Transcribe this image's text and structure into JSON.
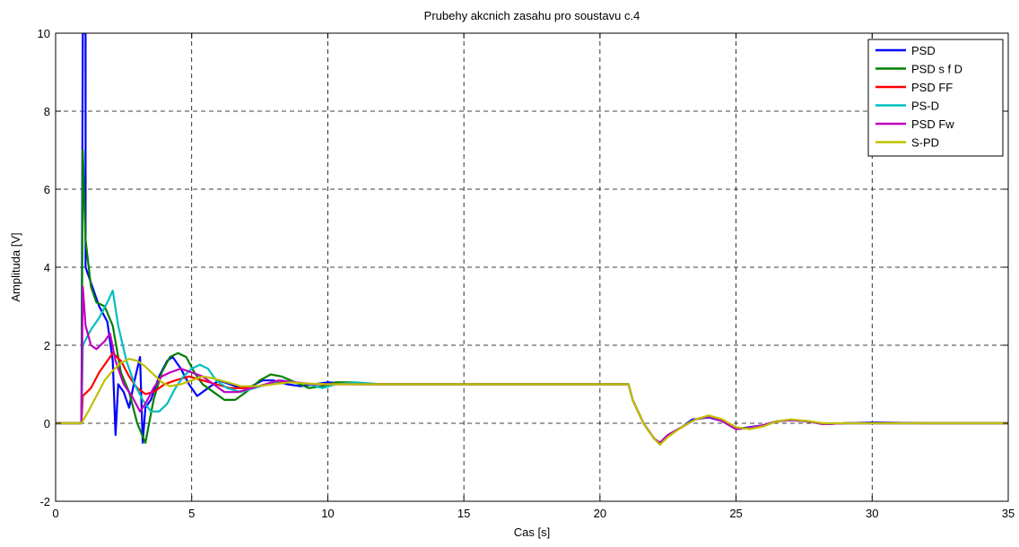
{
  "chart_data": {
    "type": "line",
    "title": "Prubehy akcnich zasahu pro soustavu c.4",
    "xlabel": "Cas [s]",
    "ylabel": "Amplituda [V]",
    "xlim": [
      0,
      35
    ],
    "ylim": [
      -2,
      10
    ],
    "xticks": [
      0,
      5,
      10,
      15,
      20,
      25,
      30,
      35
    ],
    "yticks": [
      -2,
      0,
      2,
      4,
      6,
      8,
      10
    ],
    "grid": true,
    "legend_position": "top-right",
    "series": [
      {
        "name": "PSD",
        "color": "#0000ff",
        "points": [
          [
            0,
            0
          ],
          [
            0.95,
            0
          ],
          [
            1.0,
            10
          ],
          [
            1.1,
            10
          ],
          [
            1.1,
            4.0
          ],
          [
            1.3,
            3.6
          ],
          [
            1.6,
            3.0
          ],
          [
            1.9,
            2.6
          ],
          [
            2.1,
            1.6
          ],
          [
            2.2,
            -0.3
          ],
          [
            2.3,
            1.0
          ],
          [
            2.5,
            0.8
          ],
          [
            2.7,
            0.4
          ],
          [
            2.9,
            1.1
          ],
          [
            3.1,
            1.7
          ],
          [
            3.2,
            -0.5
          ],
          [
            3.3,
            0.4
          ],
          [
            3.5,
            0.6
          ],
          [
            3.8,
            1.2
          ],
          [
            4.1,
            1.6
          ],
          [
            4.3,
            1.7
          ],
          [
            4.6,
            1.4
          ],
          [
            4.9,
            1.0
          ],
          [
            5.2,
            0.7
          ],
          [
            5.6,
            0.9
          ],
          [
            6.0,
            1.1
          ],
          [
            6.4,
            1.0
          ],
          [
            6.8,
            0.9
          ],
          [
            7.2,
            0.95
          ],
          [
            7.6,
            1.1
          ],
          [
            8.0,
            1.1
          ],
          [
            8.5,
            1.0
          ],
          [
            9.0,
            0.95
          ],
          [
            9.5,
            1.0
          ],
          [
            10.0,
            1.05
          ],
          [
            11,
            1.0
          ],
          [
            12,
            1.0
          ],
          [
            13,
            1.0
          ],
          [
            15,
            1.0
          ],
          [
            21.05,
            1.0
          ],
          [
            21.2,
            0.6
          ],
          [
            21.6,
            0.0
          ],
          [
            22.0,
            -0.4
          ],
          [
            22.2,
            -0.5
          ],
          [
            22.5,
            -0.3
          ],
          [
            23.0,
            -0.1
          ],
          [
            23.4,
            0.1
          ],
          [
            24.0,
            0.15
          ],
          [
            24.5,
            0.05
          ],
          [
            25.0,
            -0.15
          ],
          [
            25.5,
            -0.1
          ],
          [
            26.0,
            -0.05
          ],
          [
            26.5,
            0.05
          ],
          [
            27.0,
            0.08
          ],
          [
            27.6,
            0.05
          ],
          [
            28.2,
            -0.02
          ],
          [
            29.0,
            0.0
          ],
          [
            30,
            0.02
          ],
          [
            32,
            0.0
          ],
          [
            35,
            0.0
          ]
        ]
      },
      {
        "name": "PSD s f D",
        "color": "#008000",
        "points": [
          [
            0,
            0
          ],
          [
            0.95,
            0
          ],
          [
            1.0,
            7.0
          ],
          [
            1.1,
            4.7
          ],
          [
            1.3,
            3.5
          ],
          [
            1.5,
            3.1
          ],
          [
            1.8,
            3.0
          ],
          [
            2.1,
            2.5
          ],
          [
            2.4,
            1.3
          ],
          [
            2.7,
            0.8
          ],
          [
            3.0,
            0.0
          ],
          [
            3.3,
            -0.5
          ],
          [
            3.6,
            0.6
          ],
          [
            3.9,
            1.3
          ],
          [
            4.2,
            1.7
          ],
          [
            4.5,
            1.8
          ],
          [
            4.8,
            1.7
          ],
          [
            5.1,
            1.3
          ],
          [
            5.4,
            1.0
          ],
          [
            5.8,
            0.8
          ],
          [
            6.2,
            0.6
          ],
          [
            6.6,
            0.6
          ],
          [
            7.0,
            0.8
          ],
          [
            7.5,
            1.1
          ],
          [
            7.9,
            1.25
          ],
          [
            8.3,
            1.2
          ],
          [
            8.8,
            1.05
          ],
          [
            9.3,
            0.9
          ],
          [
            9.8,
            0.95
          ],
          [
            10.3,
            1.05
          ],
          [
            10.9,
            1.05
          ],
          [
            11.5,
            1.0
          ],
          [
            13,
            1.0
          ],
          [
            15,
            1.0
          ],
          [
            21.05,
            1.0
          ],
          [
            21.2,
            0.6
          ],
          [
            21.6,
            0.0
          ],
          [
            22.0,
            -0.4
          ],
          [
            22.2,
            -0.5
          ],
          [
            22.5,
            -0.3
          ],
          [
            23.0,
            -0.1
          ],
          [
            23.5,
            0.1
          ],
          [
            24.0,
            0.17
          ],
          [
            24.5,
            0.05
          ],
          [
            25.0,
            -0.15
          ],
          [
            25.5,
            -0.12
          ],
          [
            26.0,
            -0.05
          ],
          [
            26.5,
            0.05
          ],
          [
            27.0,
            0.08
          ],
          [
            27.6,
            0.05
          ],
          [
            28.2,
            -0.02
          ],
          [
            29.0,
            0.0
          ],
          [
            35,
            0.0
          ]
        ]
      },
      {
        "name": "PSD FF",
        "color": "#ff0000",
        "points": [
          [
            0,
            0
          ],
          [
            0.95,
            0
          ],
          [
            1.0,
            0.7
          ],
          [
            1.3,
            0.9
          ],
          [
            1.6,
            1.3
          ],
          [
            1.9,
            1.6
          ],
          [
            2.1,
            1.8
          ],
          [
            2.4,
            1.6
          ],
          [
            2.7,
            1.2
          ],
          [
            3.0,
            0.9
          ],
          [
            3.3,
            0.75
          ],
          [
            3.6,
            0.8
          ],
          [
            4.0,
            1.0
          ],
          [
            4.4,
            1.1
          ],
          [
            4.9,
            1.2
          ],
          [
            5.4,
            1.1
          ],
          [
            5.9,
            1.0
          ],
          [
            6.4,
            0.9
          ],
          [
            6.9,
            0.9
          ],
          [
            7.5,
            0.95
          ],
          [
            8.1,
            1.05
          ],
          [
            8.8,
            1.05
          ],
          [
            9.5,
            1.0
          ],
          [
            10,
            1.0
          ],
          [
            15,
            1.0
          ],
          [
            21.05,
            1.0
          ],
          [
            21.2,
            0.6
          ],
          [
            21.6,
            0.0
          ],
          [
            22.0,
            -0.4
          ],
          [
            22.2,
            -0.5
          ],
          [
            22.5,
            -0.3
          ],
          [
            23.0,
            -0.1
          ],
          [
            23.5,
            0.1
          ],
          [
            24.0,
            0.17
          ],
          [
            24.5,
            0.05
          ],
          [
            25.0,
            -0.15
          ],
          [
            25.5,
            -0.12
          ],
          [
            26.0,
            -0.05
          ],
          [
            26.5,
            0.05
          ],
          [
            27.0,
            0.08
          ],
          [
            27.6,
            0.05
          ],
          [
            28.2,
            -0.02
          ],
          [
            29.0,
            0.0
          ],
          [
            35,
            0.0
          ]
        ]
      },
      {
        "name": "PS-D",
        "color": "#00bfbf",
        "points": [
          [
            0,
            0
          ],
          [
            0.95,
            0
          ],
          [
            1.0,
            2.0
          ],
          [
            1.3,
            2.4
          ],
          [
            1.6,
            2.7
          ],
          [
            1.9,
            3.1
          ],
          [
            2.1,
            3.4
          ],
          [
            2.3,
            2.5
          ],
          [
            2.6,
            1.6
          ],
          [
            2.9,
            1.0
          ],
          [
            3.2,
            0.6
          ],
          [
            3.5,
            0.3
          ],
          [
            3.8,
            0.3
          ],
          [
            4.1,
            0.5
          ],
          [
            4.4,
            0.9
          ],
          [
            4.7,
            1.2
          ],
          [
            5.0,
            1.4
          ],
          [
            5.3,
            1.5
          ],
          [
            5.6,
            1.4
          ],
          [
            5.9,
            1.1
          ],
          [
            6.3,
            0.9
          ],
          [
            6.8,
            0.8
          ],
          [
            7.3,
            0.9
          ],
          [
            7.8,
            1.0
          ],
          [
            8.3,
            1.1
          ],
          [
            8.8,
            1.05
          ],
          [
            9.3,
            1.0
          ],
          [
            9.8,
            0.9
          ],
          [
            10.3,
            1.0
          ],
          [
            11,
            1.05
          ],
          [
            12,
            1.0
          ],
          [
            15,
            1.0
          ],
          [
            21.05,
            1.0
          ],
          [
            21.2,
            0.6
          ],
          [
            21.6,
            0.0
          ],
          [
            22.0,
            -0.4
          ],
          [
            22.2,
            -0.5
          ],
          [
            22.5,
            -0.3
          ],
          [
            23.0,
            -0.1
          ],
          [
            23.5,
            0.1
          ],
          [
            24.0,
            0.17
          ],
          [
            24.5,
            0.05
          ],
          [
            25.0,
            -0.15
          ],
          [
            25.5,
            -0.12
          ],
          [
            26.0,
            -0.05
          ],
          [
            26.5,
            0.05
          ],
          [
            27.0,
            0.08
          ],
          [
            27.6,
            0.05
          ],
          [
            28.2,
            -0.02
          ],
          [
            29.0,
            0.0
          ],
          [
            35,
            0.0
          ]
        ]
      },
      {
        "name": "PSD Fw",
        "color": "#bf00bf",
        "points": [
          [
            0,
            0
          ],
          [
            0.95,
            0
          ],
          [
            1.0,
            3.5
          ],
          [
            1.1,
            2.5
          ],
          [
            1.3,
            2.0
          ],
          [
            1.5,
            1.9
          ],
          [
            1.8,
            2.1
          ],
          [
            2.0,
            2.3
          ],
          [
            2.2,
            1.6
          ],
          [
            2.5,
            1.0
          ],
          [
            2.8,
            0.7
          ],
          [
            3.1,
            0.3
          ],
          [
            3.3,
            0.5
          ],
          [
            3.6,
            0.9
          ],
          [
            3.9,
            1.2
          ],
          [
            4.2,
            1.3
          ],
          [
            4.6,
            1.4
          ],
          [
            5.0,
            1.3
          ],
          [
            5.4,
            1.2
          ],
          [
            5.8,
            1.0
          ],
          [
            6.2,
            0.8
          ],
          [
            6.7,
            0.8
          ],
          [
            7.2,
            0.9
          ],
          [
            7.7,
            1.0
          ],
          [
            8.2,
            1.1
          ],
          [
            8.8,
            1.05
          ],
          [
            9.4,
            1.0
          ],
          [
            10.0,
            1.0
          ],
          [
            15,
            1.0
          ],
          [
            21.05,
            1.0
          ],
          [
            21.2,
            0.6
          ],
          [
            21.6,
            0.0
          ],
          [
            22.0,
            -0.4
          ],
          [
            22.2,
            -0.5
          ],
          [
            22.5,
            -0.3
          ],
          [
            23.0,
            -0.1
          ],
          [
            23.5,
            0.1
          ],
          [
            24.0,
            0.17
          ],
          [
            24.5,
            0.05
          ],
          [
            25.0,
            -0.15
          ],
          [
            25.5,
            -0.12
          ],
          [
            26.0,
            -0.05
          ],
          [
            26.5,
            0.05
          ],
          [
            27.0,
            0.08
          ],
          [
            27.6,
            0.05
          ],
          [
            28.2,
            -0.02
          ],
          [
            29.0,
            0.0
          ],
          [
            35,
            0.0
          ]
        ]
      },
      {
        "name": "S-PD",
        "color": "#bfbf00",
        "points": [
          [
            0,
            0
          ],
          [
            0.95,
            0
          ],
          [
            1.2,
            0.3
          ],
          [
            1.5,
            0.7
          ],
          [
            1.8,
            1.1
          ],
          [
            2.1,
            1.35
          ],
          [
            2.4,
            1.55
          ],
          [
            2.7,
            1.65
          ],
          [
            3.0,
            1.6
          ],
          [
            3.3,
            1.45
          ],
          [
            3.6,
            1.25
          ],
          [
            3.9,
            1.05
          ],
          [
            4.2,
            0.95
          ],
          [
            4.6,
            1.0
          ],
          [
            5.0,
            1.1
          ],
          [
            5.4,
            1.2
          ],
          [
            5.8,
            1.15
          ],
          [
            6.3,
            1.05
          ],
          [
            6.8,
            0.95
          ],
          [
            7.4,
            0.95
          ],
          [
            8.0,
            1.0
          ],
          [
            8.6,
            1.05
          ],
          [
            9.2,
            1.02
          ],
          [
            10.0,
            1.0
          ],
          [
            15,
            1.0
          ],
          [
            21.05,
            1.0
          ],
          [
            21.2,
            0.6
          ],
          [
            21.6,
            0.0
          ],
          [
            22.0,
            -0.4
          ],
          [
            22.2,
            -0.55
          ],
          [
            22.5,
            -0.35
          ],
          [
            23.0,
            -0.1
          ],
          [
            23.5,
            0.1
          ],
          [
            24.0,
            0.2
          ],
          [
            24.5,
            0.1
          ],
          [
            25.0,
            -0.1
          ],
          [
            25.5,
            -0.15
          ],
          [
            26.0,
            -0.08
          ],
          [
            26.5,
            0.05
          ],
          [
            27.0,
            0.1
          ],
          [
            27.6,
            0.06
          ],
          [
            28.2,
            0.0
          ],
          [
            29.0,
            0.0
          ],
          [
            35,
            0.0
          ]
        ]
      }
    ]
  }
}
